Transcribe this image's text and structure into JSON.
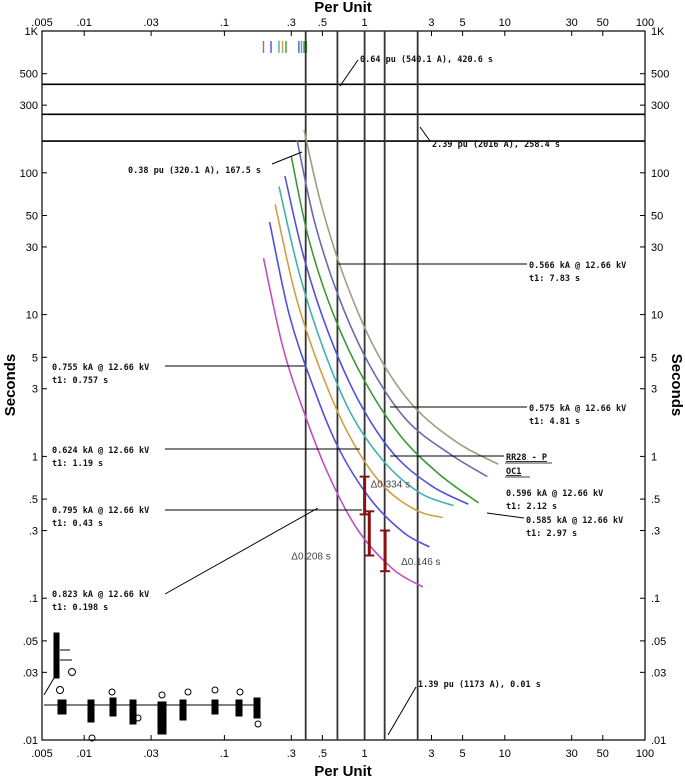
{
  "chart_data": {
    "type": "line",
    "scale": {
      "x": "log",
      "y": "log"
    },
    "xlabel": "Per Unit",
    "ylabel": "Seconds",
    "xlim": [
      0.005,
      100
    ],
    "ylim": [
      0.01,
      1000
    ],
    "x_ticks": [
      {
        "v": 0.005,
        "t": ".005"
      },
      {
        "v": 0.01,
        "t": ".01"
      },
      {
        "v": 0.03,
        "t": ".03"
      },
      {
        "v": 0.1,
        "t": ".1"
      },
      {
        "v": 0.3,
        "t": ".3"
      },
      {
        "v": 0.5,
        "t": ".5"
      },
      {
        "v": 1,
        "t": "1"
      },
      {
        "v": 3,
        "t": "3"
      },
      {
        "v": 5,
        "t": "5"
      },
      {
        "v": 10,
        "t": "10"
      },
      {
        "v": 30,
        "t": "30"
      },
      {
        "v": 50,
        "t": "50"
      },
      {
        "v": 100,
        "t": "100"
      }
    ],
    "y_ticks": [
      {
        "v": 1000,
        "t": "1K"
      },
      {
        "v": 500,
        "t": "500"
      },
      {
        "v": 300,
        "t": "300"
      },
      {
        "v": 100,
        "t": "100"
      },
      {
        "v": 50,
        "t": "50"
      },
      {
        "v": 30,
        "t": "30"
      },
      {
        "v": 10,
        "t": "10"
      },
      {
        "v": 5,
        "t": "5"
      },
      {
        "v": 3,
        "t": "3"
      },
      {
        "v": 1,
        "t": "1"
      },
      {
        "v": 0.5,
        "t": ".5"
      },
      {
        "v": 0.3,
        "t": ".3"
      },
      {
        "v": 0.1,
        "t": ".1"
      },
      {
        "v": 0.05,
        "t": ".05"
      },
      {
        "v": 0.03,
        "t": ".03"
      },
      {
        "v": 0.01,
        "t": ".01"
      }
    ],
    "vertical_lines": [
      0.38,
      0.64,
      1.0,
      1.39,
      2.39
    ],
    "horizontal_lines": [
      167.5,
      258.4,
      420.6
    ],
    "top_marks": [
      {
        "x": 0.19,
        "color": "#c050c0"
      },
      {
        "x": 0.215,
        "color": "#5050e0"
      },
      {
        "x": 0.245,
        "color": "#40b0b0"
      },
      {
        "x": 0.26,
        "color": "#d0a040"
      },
      {
        "x": 0.275,
        "color": "#3a9a3a"
      },
      {
        "x": 0.34,
        "color": "#5050e0"
      },
      {
        "x": 0.355,
        "color": "#40b0b0"
      },
      {
        "x": 0.37,
        "color": "#3a9a3a"
      },
      {
        "x": 0.385,
        "color": "#909070"
      }
    ],
    "series": [
      {
        "color": "#c050c0",
        "points": [
          [
            0.19,
            25
          ],
          [
            0.26,
            6
          ],
          [
            0.36,
            2.2
          ],
          [
            0.55,
            0.75
          ],
          [
            0.9,
            0.3
          ],
          [
            1.6,
            0.16
          ],
          [
            2.6,
            0.12
          ]
        ]
      },
      {
        "color": "#5050e0",
        "points": [
          [
            0.21,
            45
          ],
          [
            0.29,
            10
          ],
          [
            0.42,
            3.3
          ],
          [
            0.65,
            1.15
          ],
          [
            1.1,
            0.5
          ],
          [
            1.9,
            0.29
          ],
          [
            2.9,
            0.23
          ]
        ]
      },
      {
        "color": "#d0a040",
        "points": [
          [
            0.23,
            60
          ],
          [
            0.32,
            14
          ],
          [
            0.47,
            4.4
          ],
          [
            0.75,
            1.5
          ],
          [
            1.3,
            0.65
          ],
          [
            2.3,
            0.42
          ],
          [
            3.6,
            0.37
          ]
        ]
      },
      {
        "color": "#40b0b0",
        "points": [
          [
            0.245,
            80
          ],
          [
            0.34,
            20
          ],
          [
            0.5,
            6
          ],
          [
            0.8,
            2.0
          ],
          [
            1.4,
            0.9
          ],
          [
            2.5,
            0.55
          ],
          [
            4.3,
            0.45
          ]
        ]
      },
      {
        "color": "#5050e0",
        "points": [
          [
            0.27,
            95
          ],
          [
            0.37,
            25
          ],
          [
            0.55,
            7.5
          ],
          [
            0.9,
            2.5
          ],
          [
            1.6,
            1.05
          ],
          [
            3.0,
            0.62
          ],
          [
            5.5,
            0.46
          ]
        ]
      },
      {
        "color": "#3a9a3a",
        "points": [
          [
            0.3,
            130
          ],
          [
            0.4,
            34
          ],
          [
            0.6,
            10
          ],
          [
            1.0,
            3.4
          ],
          [
            1.8,
            1.4
          ],
          [
            3.4,
            0.75
          ],
          [
            6.5,
            0.47
          ]
        ]
      },
      {
        "color": "#6a6ab0",
        "points": [
          [
            0.33,
            170
          ],
          [
            0.44,
            45
          ],
          [
            0.66,
            13
          ],
          [
            1.1,
            4.3
          ],
          [
            2.0,
            1.8
          ],
          [
            4.0,
            1.05
          ],
          [
            7.5,
            0.72
          ]
        ]
      },
      {
        "color": "#9aa080",
        "points": [
          [
            0.37,
            200
          ],
          [
            0.49,
            60
          ],
          [
            0.72,
            18
          ],
          [
            1.2,
            5.6
          ],
          [
            2.2,
            2.3
          ],
          [
            4.6,
            1.25
          ],
          [
            9.0,
            0.88
          ]
        ]
      }
    ],
    "brackets": [
      {
        "x": 1.0,
        "y_top": 0.72,
        "y_bot": 0.39,
        "label": "Δ0.334 s"
      },
      {
        "x": 1.08,
        "y_top": 0.41,
        "y_bot": 0.2,
        "label": "Δ0.208 s"
      },
      {
        "x": 1.4,
        "y_top": 0.3,
        "y_bot": 0.155,
        "label": "Δ0.146 s"
      }
    ],
    "annotations": [
      {
        "lines": [
          "0.64 pu (540.1 A), 420.6 s"
        ]
      },
      {
        "lines": [
          "2.39 pu (2016 A), 258.4 s"
        ]
      },
      {
        "lines": [
          "0.38 pu (320.1 A), 167.5 s"
        ]
      },
      {
        "lines": [
          "0.566 kA @ 12.66 kV",
          "t1: 7.83 s"
        ]
      },
      {
        "lines": [
          "0.755 kA @ 12.66 kV",
          "t1: 0.757 s"
        ]
      },
      {
        "lines": [
          "0.575 kA @ 12.66 kV",
          "t1: 4.81 s"
        ]
      },
      {
        "lines": [
          "0.624 kA @ 12.66 kV",
          "t1: 1.19 s"
        ]
      },
      {
        "lines": [
          "RR28 - P",
          "OC1"
        ]
      },
      {
        "lines": [
          "0.596 kA @ 12.66 kV",
          "t1: 2.12 s"
        ]
      },
      {
        "lines": [
          "0.795 kA @ 12.66 kV",
          "t1: 0.43 s"
        ]
      },
      {
        "lines": [
          "0.585 kA @ 12.66 kV",
          "t1: 2.97 s"
        ]
      },
      {
        "lines": [
          "0.823 kA @ 12.66 kV",
          "t1: 0.198 s"
        ]
      },
      {
        "lines": [
          "1.39 pu (1173 A), 0.01 s"
        ]
      }
    ]
  }
}
